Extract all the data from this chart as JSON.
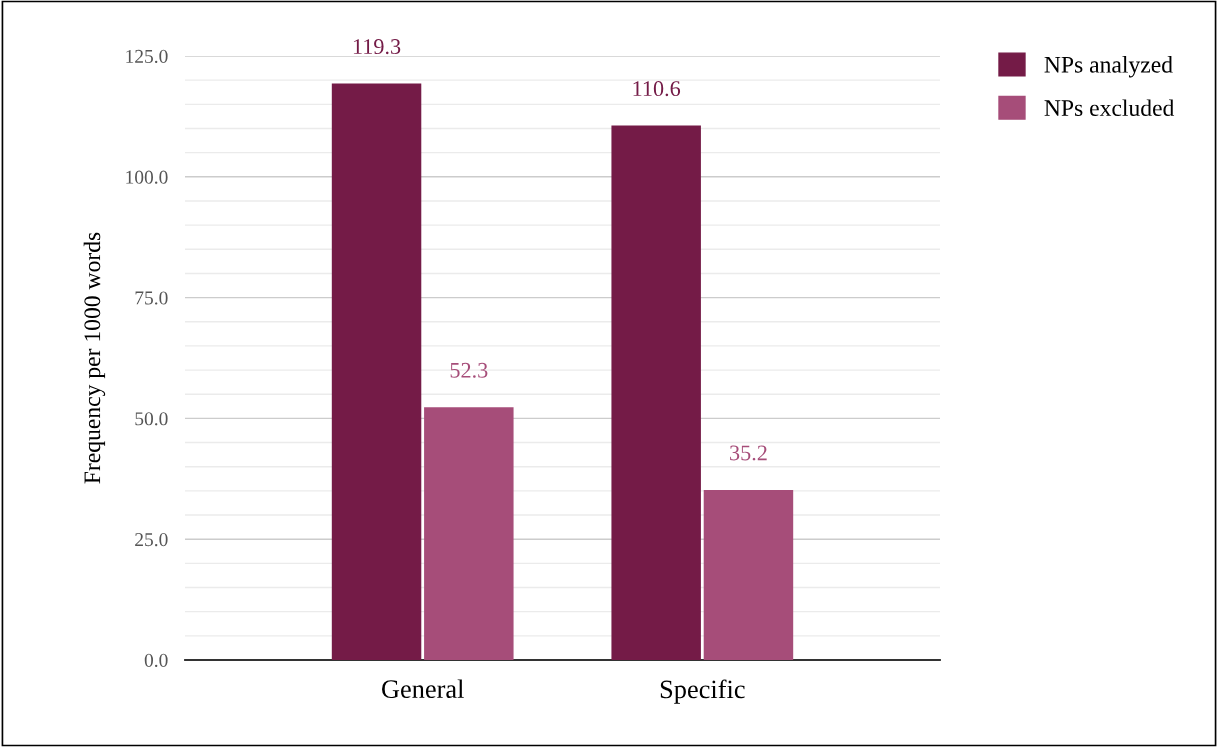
{
  "chart_data": {
    "type": "bar",
    "ylabel": "Frequency per 1000 words",
    "categories": [
      "General",
      "Specific"
    ],
    "series": [
      {
        "name": "NPs analyzed",
        "color": "#741b47",
        "values": [
          119.3,
          110.6
        ]
      },
      {
        "name": "NPs excluded",
        "color": "#a64d79",
        "values": [
          52.3,
          35.2
        ]
      }
    ],
    "ylim": [
      0,
      125
    ],
    "yticks": [
      {
        "value": 0,
        "label": "0.0"
      },
      {
        "value": 5,
        "label": null
      },
      {
        "value": 10,
        "label": null
      },
      {
        "value": 15,
        "label": null
      },
      {
        "value": 20,
        "label": null
      },
      {
        "value": 25,
        "label": "25.0"
      },
      {
        "value": 30,
        "label": null
      },
      {
        "value": 35,
        "label": null
      },
      {
        "value": 40,
        "label": null
      },
      {
        "value": 45,
        "label": null
      },
      {
        "value": 50,
        "label": "50.0"
      },
      {
        "value": 55,
        "label": null
      },
      {
        "value": 60,
        "label": null
      },
      {
        "value": 65,
        "label": null
      },
      {
        "value": 70,
        "label": null
      },
      {
        "value": 75,
        "label": "75.0"
      },
      {
        "value": 80,
        "label": null
      },
      {
        "value": 85,
        "label": null
      },
      {
        "value": 90,
        "label": null
      },
      {
        "value": 95,
        "label": null
      },
      {
        "value": 100,
        "label": "100.0"
      },
      {
        "value": 105,
        "label": null
      },
      {
        "value": 110,
        "label": null
      },
      {
        "value": 115,
        "label": null
      },
      {
        "value": 120,
        "label": null
      },
      {
        "value": 125,
        "label": "125.0"
      }
    ],
    "grid": "y",
    "legend": "top right",
    "data_labels": true
  }
}
